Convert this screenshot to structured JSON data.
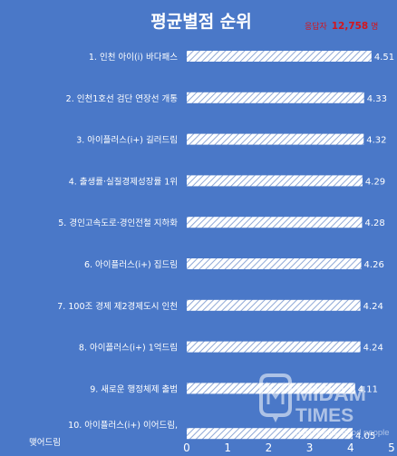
{
  "header": {
    "title": "평균별점 순위",
    "respondents_label": "응답자",
    "respondents_count": "12,758",
    "respondents_unit": "명"
  },
  "colors": {
    "background": "#4a78c8",
    "bar": "#ffffff",
    "bar_hatch": "#8fa8d6",
    "accent_red": "#d4151c"
  },
  "watermark": {
    "line1": "MIDAM",
    "line2": "TIMES",
    "slogan": "good news, good people",
    "icon": "midam-logo-icon"
  },
  "chart_data": {
    "type": "bar",
    "orientation": "horizontal",
    "title": "평균별점 순위",
    "categories": [
      "1. 인천 아이(i) 바다패스",
      "2. 인천1호선 검단 연장선 개통",
      "3. 아이플러스(i+) 길러드림",
      "4. 출생률·실질경제성장률 1위",
      "5. 경인고속도로·경인전철 지하화",
      "6. 아이플러스(i+) 집드림",
      "7. 100조 경제 제2경제도시 인천",
      "8. 아이플러스(i+) 1억드림",
      "9. 새로운 행정체제 출범",
      "10. 아이플러스(i+) 이어드림, 맺어드림"
    ],
    "values": [
      4.51,
      4.33,
      4.32,
      4.29,
      4.28,
      4.26,
      4.24,
      4.24,
      4.11,
      4.05
    ],
    "value_labels": [
      "4.51",
      "4.33",
      "4.32",
      "4.29",
      "4.28",
      "4.26",
      "4.24",
      "4.24",
      "4.11",
      "4.05"
    ],
    "xlim": [
      0,
      5
    ],
    "xticks": [
      "0",
      "1",
      "2",
      "3",
      "4",
      "5"
    ],
    "grid": false,
    "legend": "none"
  }
}
